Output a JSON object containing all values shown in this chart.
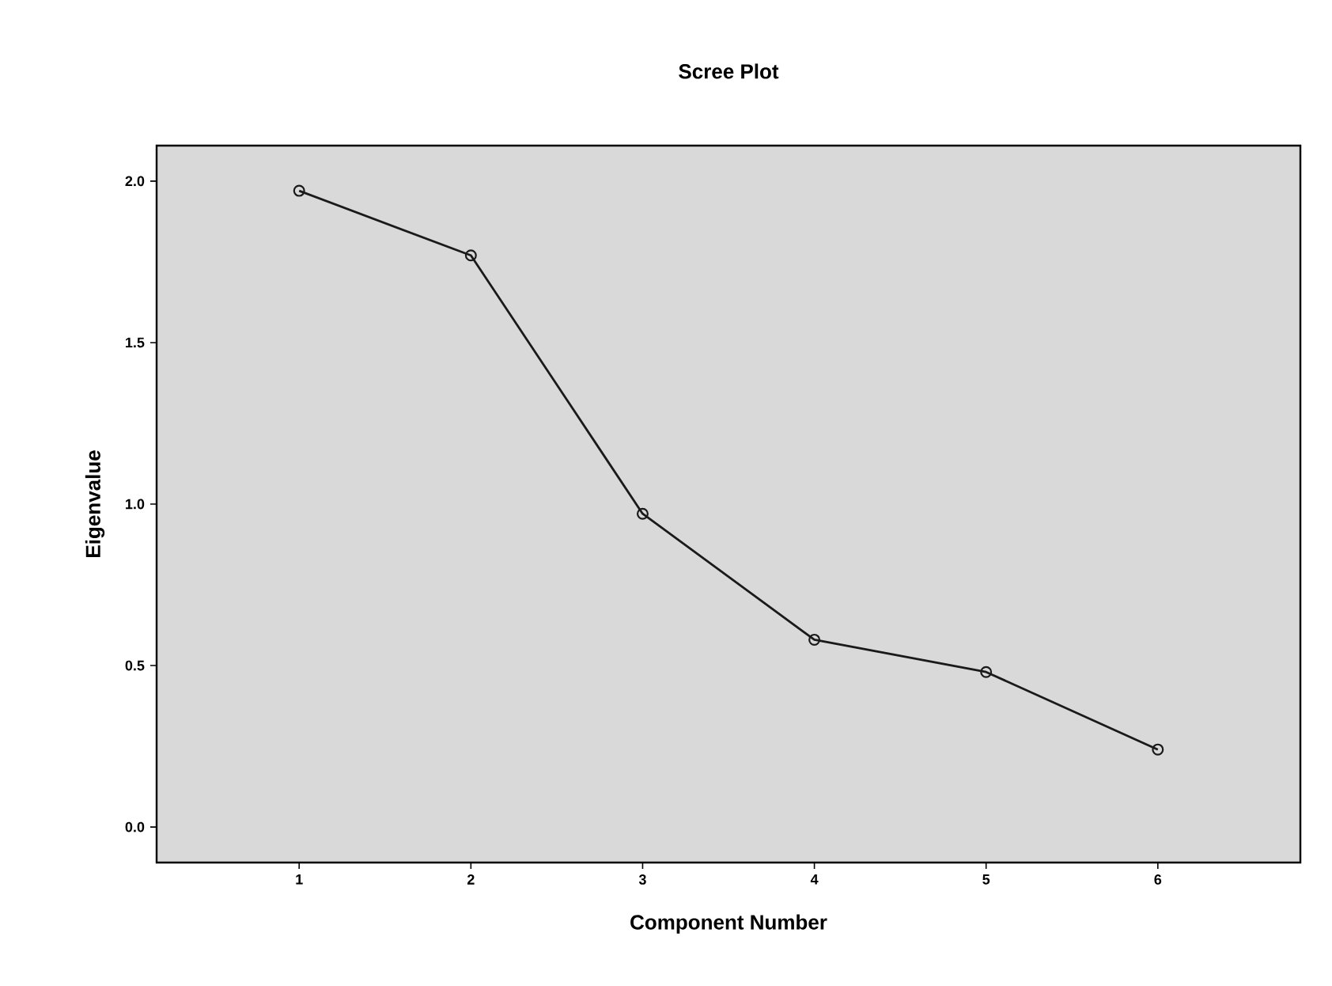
{
  "chart_data": {
    "type": "line",
    "title": "Scree Plot",
    "xlabel": "Component Number",
    "ylabel": "Eigenvalue",
    "x": [
      1,
      2,
      3,
      4,
      5,
      6
    ],
    "series": [
      {
        "color": "#1a1a1a",
        "values": [
          1.97,
          1.77,
          0.97,
          0.58,
          0.48,
          0.24
        ]
      }
    ],
    "xlim": [
      0.17,
      6.83
    ],
    "ylim": [
      -0.11,
      2.11
    ],
    "xticks": [
      1,
      2,
      3,
      4,
      5,
      6
    ],
    "yticks": [
      {
        "value": 0,
        "label": "0.0"
      },
      {
        "value": 0.5,
        "label": "0.5"
      },
      {
        "value": 1,
        "label": "1.0"
      },
      {
        "value": 1.5,
        "label": "1.5"
      },
      {
        "value": 2,
        "label": "2.0"
      }
    ],
    "marker": "circle",
    "line_style": "solid"
  }
}
